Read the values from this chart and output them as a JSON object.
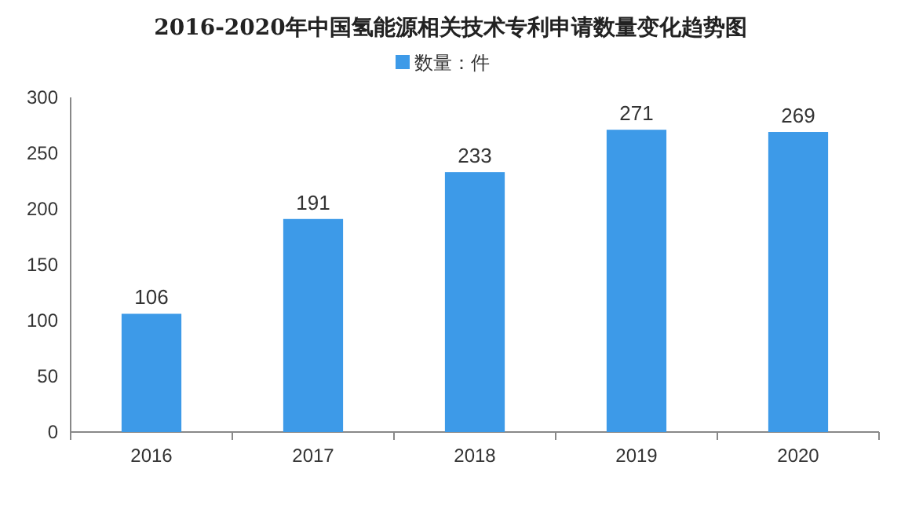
{
  "chart_data": {
    "type": "bar",
    "title": "2016-2020年中国氢能源相关技术专利申请数量变化趋势图",
    "categories": [
      "2016",
      "2017",
      "2018",
      "2019",
      "2020"
    ],
    "series": [
      {
        "name": "数量：件",
        "color": "#3d9ae8",
        "values": [
          106,
          191,
          233,
          271,
          269
        ]
      }
    ],
    "ylim": [
      0,
      300
    ],
    "yticks": [
      0,
      50,
      100,
      150,
      200,
      250,
      300
    ],
    "data_labels": true,
    "legend": "top",
    "grid": false
  }
}
